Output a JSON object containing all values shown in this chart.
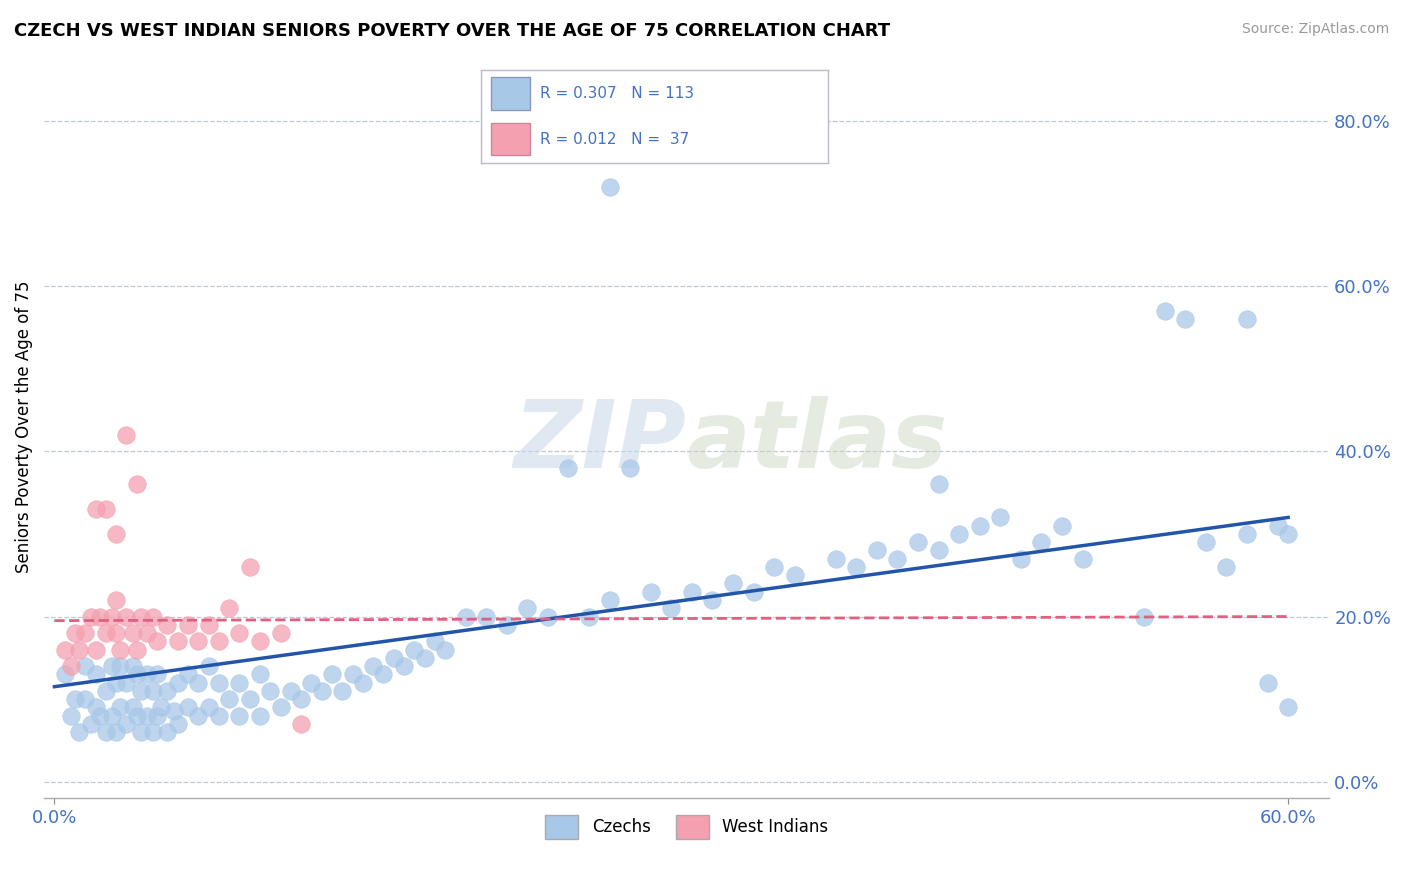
{
  "title": "CZECH VS WEST INDIAN SENIORS POVERTY OVER THE AGE OF 75 CORRELATION CHART",
  "source": "Source: ZipAtlas.com",
  "ylabel": "Seniors Poverty Over the Age of 75",
  "xlim": [
    -0.005,
    0.62
  ],
  "ylim": [
    -0.02,
    0.88
  ],
  "ytick_vals": [
    0.0,
    0.2,
    0.4,
    0.6,
    0.8
  ],
  "ytick_labels": [
    "0.0%",
    "20.0%",
    "40.0%",
    "60.0%",
    "80.0%"
  ],
  "xtick_vals": [
    0.0,
    0.6
  ],
  "xtick_labels": [
    "0.0%",
    "60.0%"
  ],
  "czechs_color": "#a8c8e8",
  "west_indians_color": "#f4a0b0",
  "trend_czech_color": "#2255aa",
  "trend_wi_color": "#e06080",
  "czechs_R": 0.307,
  "czechs_N": 113,
  "wi_R": 0.012,
  "wi_N": 37,
  "legend_czech_color": "#a8c8e8",
  "legend_wi_color": "#f4a0b0",
  "tick_color": "#4472c4",
  "grid_color": "#c0c8d8",
  "watermark_color": "#c8d8e8",
  "czechs_x": [
    0.005,
    0.008,
    0.01,
    0.012,
    0.015,
    0.015,
    0.018,
    0.02,
    0.02,
    0.022,
    0.025,
    0.025,
    0.028,
    0.028,
    0.03,
    0.03,
    0.032,
    0.032,
    0.035,
    0.035,
    0.038,
    0.038,
    0.04,
    0.04,
    0.042,
    0.042,
    0.045,
    0.045,
    0.048,
    0.048,
    0.05,
    0.05,
    0.052,
    0.055,
    0.055,
    0.058,
    0.06,
    0.06,
    0.065,
    0.065,
    0.07,
    0.07,
    0.075,
    0.075,
    0.08,
    0.08,
    0.085,
    0.09,
    0.09,
    0.095,
    0.1,
    0.1,
    0.105,
    0.11,
    0.115,
    0.12,
    0.125,
    0.13,
    0.135,
    0.14,
    0.145,
    0.15,
    0.155,
    0.16,
    0.165,
    0.17,
    0.175,
    0.18,
    0.185,
    0.19,
    0.2,
    0.21,
    0.22,
    0.23,
    0.24,
    0.25,
    0.26,
    0.27,
    0.28,
    0.29,
    0.3,
    0.31,
    0.32,
    0.33,
    0.34,
    0.35,
    0.36,
    0.38,
    0.39,
    0.4,
    0.41,
    0.42,
    0.43,
    0.44,
    0.45,
    0.46,
    0.47,
    0.48,
    0.49,
    0.5,
    0.27,
    0.53,
    0.55,
    0.56,
    0.57,
    0.58,
    0.59,
    0.595,
    0.6,
    0.6,
    0.54,
    0.58,
    0.43
  ],
  "czechs_y": [
    0.13,
    0.08,
    0.1,
    0.06,
    0.1,
    0.14,
    0.07,
    0.09,
    0.13,
    0.08,
    0.06,
    0.11,
    0.08,
    0.14,
    0.06,
    0.12,
    0.09,
    0.14,
    0.07,
    0.12,
    0.09,
    0.14,
    0.08,
    0.13,
    0.06,
    0.11,
    0.08,
    0.13,
    0.06,
    0.11,
    0.08,
    0.13,
    0.09,
    0.06,
    0.11,
    0.085,
    0.07,
    0.12,
    0.09,
    0.13,
    0.08,
    0.12,
    0.09,
    0.14,
    0.08,
    0.12,
    0.1,
    0.08,
    0.12,
    0.1,
    0.08,
    0.13,
    0.11,
    0.09,
    0.11,
    0.1,
    0.12,
    0.11,
    0.13,
    0.11,
    0.13,
    0.12,
    0.14,
    0.13,
    0.15,
    0.14,
    0.16,
    0.15,
    0.17,
    0.16,
    0.2,
    0.2,
    0.19,
    0.21,
    0.2,
    0.38,
    0.2,
    0.22,
    0.38,
    0.23,
    0.21,
    0.23,
    0.22,
    0.24,
    0.23,
    0.26,
    0.25,
    0.27,
    0.26,
    0.28,
    0.27,
    0.29,
    0.28,
    0.3,
    0.31,
    0.32,
    0.27,
    0.29,
    0.31,
    0.27,
    0.72,
    0.2,
    0.56,
    0.29,
    0.26,
    0.3,
    0.12,
    0.31,
    0.3,
    0.09,
    0.57,
    0.56,
    0.36
  ],
  "wi_x": [
    0.005,
    0.008,
    0.01,
    0.012,
    0.015,
    0.018,
    0.02,
    0.022,
    0.025,
    0.028,
    0.03,
    0.03,
    0.032,
    0.035,
    0.038,
    0.04,
    0.042,
    0.045,
    0.048,
    0.05,
    0.055,
    0.06,
    0.065,
    0.07,
    0.075,
    0.08,
    0.085,
    0.09,
    0.1,
    0.11,
    0.02,
    0.025,
    0.03,
    0.035,
    0.04,
    0.095,
    0.12
  ],
  "wi_y": [
    0.16,
    0.14,
    0.18,
    0.16,
    0.18,
    0.2,
    0.16,
    0.2,
    0.18,
    0.2,
    0.18,
    0.22,
    0.16,
    0.2,
    0.18,
    0.16,
    0.2,
    0.18,
    0.2,
    0.17,
    0.19,
    0.17,
    0.19,
    0.17,
    0.19,
    0.17,
    0.21,
    0.18,
    0.17,
    0.18,
    0.33,
    0.33,
    0.3,
    0.42,
    0.36,
    0.26,
    0.07
  ],
  "czech_trend_x0": 0.0,
  "czech_trend_y0": 0.115,
  "czech_trend_x1": 0.6,
  "czech_trend_y1": 0.32,
  "wi_trend_x0": 0.0,
  "wi_trend_y0": 0.195,
  "wi_trend_x1": 0.6,
  "wi_trend_y1": 0.2
}
